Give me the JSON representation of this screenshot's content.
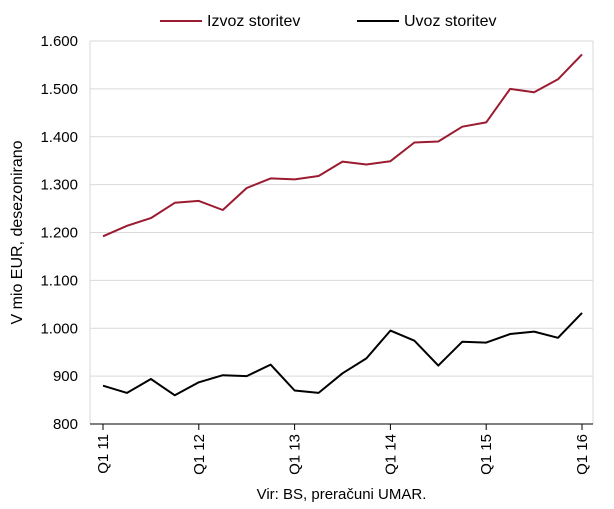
{
  "chart_data": {
    "type": "line",
    "ylabel": "V mio EUR, desezonirano",
    "xlabel": "",
    "ylim": [
      800,
      1600
    ],
    "yticks": [
      800,
      900,
      1000,
      1100,
      1200,
      1300,
      1400,
      1500,
      1600
    ],
    "ytick_labels": [
      "800",
      "900",
      "1.000",
      "1.100",
      "1.200",
      "1.300",
      "1.400",
      "1.500",
      "1.600"
    ],
    "x_labels": [
      {
        "index": 0,
        "label": "Q1 11"
      },
      {
        "index": 4,
        "label": "Q1 12"
      },
      {
        "index": 8,
        "label": "Q1 13"
      },
      {
        "index": 12,
        "label": "Q1 14"
      },
      {
        "index": 16,
        "label": "Q1 15"
      },
      {
        "index": 20,
        "label": "Q1 16"
      }
    ],
    "grid": true,
    "legend_position": "top",
    "series": [
      {
        "name": "Izvoz storitev",
        "color": "#9B1B30",
        "values": [
          1192,
          1214,
          1230,
          1262,
          1266,
          1247,
          1293,
          1313,
          1311,
          1318,
          1348,
          1342,
          1349,
          1388,
          1390,
          1421,
          1430,
          1500,
          1493,
          1520,
          1572
        ]
      },
      {
        "name": "Uvoz storitev",
        "color": "#000000",
        "values": [
          880,
          865,
          894,
          860,
          887,
          902,
          900,
          924,
          870,
          865,
          906,
          937,
          995,
          974,
          922,
          972,
          970,
          988,
          993,
          980,
          1032
        ]
      }
    ]
  },
  "source_note": "Vir: BS, preračuni UMAR."
}
